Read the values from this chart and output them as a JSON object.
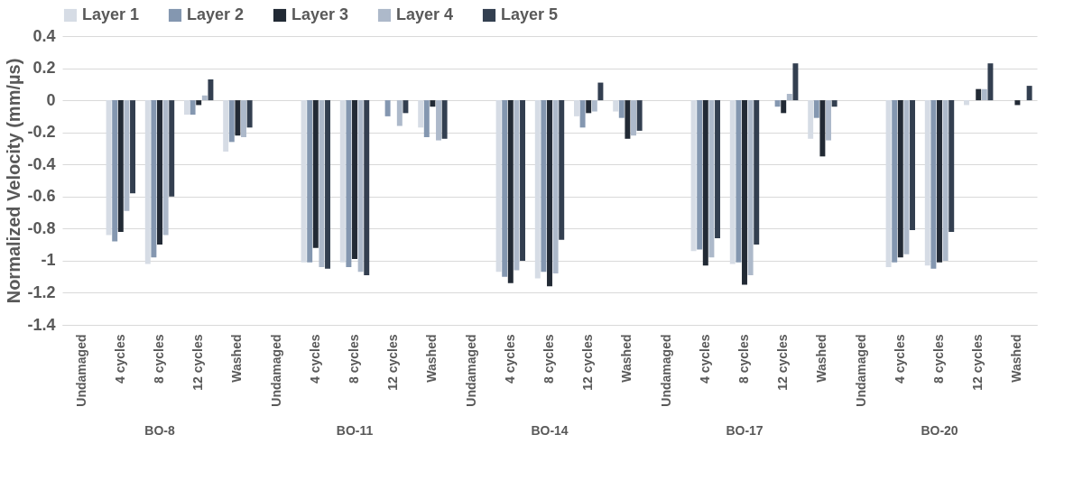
{
  "chart_data": {
    "type": "bar",
    "ylabel": "Normalized Velocity (mm/µs)",
    "categories": [
      "Undamaged",
      "4 cycles",
      "8 cycles",
      "12 cycles",
      "Washed",
      "Undamaged",
      "4 cycles",
      "8 cycles",
      "12 cycles",
      "Washed",
      "Undamaged",
      "4 cycles",
      "8 cycles",
      "12 cycles",
      "Washed",
      "Undamaged",
      "4 cycles",
      "8 cycles",
      "12 cycles",
      "Washed",
      "Undamaged",
      "4 cycles",
      "8 cycles",
      "12 cycles",
      "Washed"
    ],
    "annotations": [
      "BO-8",
      "BO-11",
      "BO-14",
      "BO-17",
      "BO-20"
    ],
    "series": [
      {
        "name": "Layer 1",
        "color": "#d6dce5",
        "values": [
          0,
          -0.84,
          -1.02,
          -0.09,
          -0.32,
          0,
          -1.01,
          -1.01,
          0,
          -0.17,
          0,
          -1.07,
          -1.11,
          -0.1,
          -0.07,
          0,
          -0.94,
          -1.02,
          0,
          -0.24,
          0,
          -1.04,
          -1.03,
          -0.03,
          0
        ]
      },
      {
        "name": "Layer 2",
        "color": "#8497b0",
        "values": [
          0,
          -0.88,
          -0.98,
          -0.09,
          -0.26,
          0,
          -1.01,
          -1.04,
          -0.1,
          -0.23,
          0,
          -1.1,
          -1.07,
          -0.17,
          -0.11,
          0,
          -0.93,
          -1.01,
          -0.04,
          -0.11,
          0,
          -1.01,
          -1.05,
          0,
          0
        ]
      },
      {
        "name": "Layer 3",
        "color": "#222a35",
        "values": [
          0,
          -0.82,
          -0.9,
          -0.03,
          -0.22,
          0,
          -0.92,
          -0.99,
          0,
          -0.04,
          0,
          -1.14,
          -1.16,
          -0.08,
          -0.24,
          0,
          -1.03,
          -1.15,
          -0.08,
          -0.35,
          0,
          -0.98,
          -1.01,
          0.07,
          -0.03
        ]
      },
      {
        "name": "Layer 4",
        "color": "#adb9ca",
        "values": [
          0,
          -0.69,
          -0.84,
          0.03,
          -0.23,
          0,
          -1.04,
          -1.07,
          -0.16,
          -0.25,
          0,
          -1.06,
          -1.08,
          -0.07,
          -0.22,
          0,
          -0.98,
          -1.09,
          0.04,
          -0.25,
          0,
          -0.96,
          -1,
          0.07,
          0
        ]
      },
      {
        "name": "Layer 5",
        "color": "#333f50",
        "values": [
          0,
          -0.58,
          -0.6,
          0.13,
          -0.17,
          0,
          -1.05,
          -1.09,
          -0.08,
          -0.24,
          0,
          -1,
          -0.87,
          0.11,
          -0.19,
          0,
          -0.86,
          -0.9,
          0.23,
          -0.04,
          0,
          -0.81,
          -0.82,
          0.23,
          0.09
        ]
      }
    ],
    "ylim": [
      -1.4,
      0.4
    ],
    "yticks": [
      -1.4,
      -1.2,
      -1,
      -0.8,
      -0.6,
      -0.4,
      -0.2,
      0,
      0.2,
      0.4
    ],
    "grid": "y",
    "legend": "top"
  }
}
